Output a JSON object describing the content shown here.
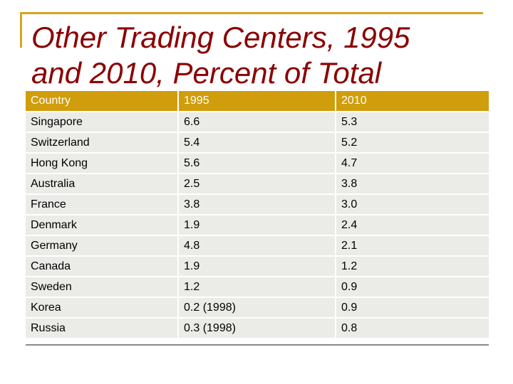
{
  "slide": {
    "title_lines": [
      "Other Trading Centers, 1995",
      "and 2010, Percent of Total"
    ],
    "colors": {
      "title": "#8b0000",
      "accent": "#d4a620",
      "header_bg": "#d09d0c",
      "row_bg": "#ebebe8"
    }
  },
  "table": {
    "headers": [
      "Country",
      "1995",
      "2010"
    ],
    "rows": [
      [
        "Singapore",
        "6.6",
        "5.3"
      ],
      [
        "Switzerland",
        "5.4",
        "5.2"
      ],
      [
        "Hong Kong",
        "5.6",
        "4.7"
      ],
      [
        "Australia",
        "2.5",
        "3.8"
      ],
      [
        "France",
        "3.8",
        "3.0"
      ],
      [
        "Denmark",
        "1.9",
        "2.4"
      ],
      [
        "Germany",
        "4.8",
        "2.1"
      ],
      [
        "Canada",
        "1.9",
        "1.2"
      ],
      [
        "Sweden",
        "1.2",
        "0.9"
      ],
      [
        "Korea",
        "0.2 (1998)",
        "0.9"
      ],
      [
        "Russia",
        "0.3 (1998)",
        "0.8"
      ]
    ]
  }
}
